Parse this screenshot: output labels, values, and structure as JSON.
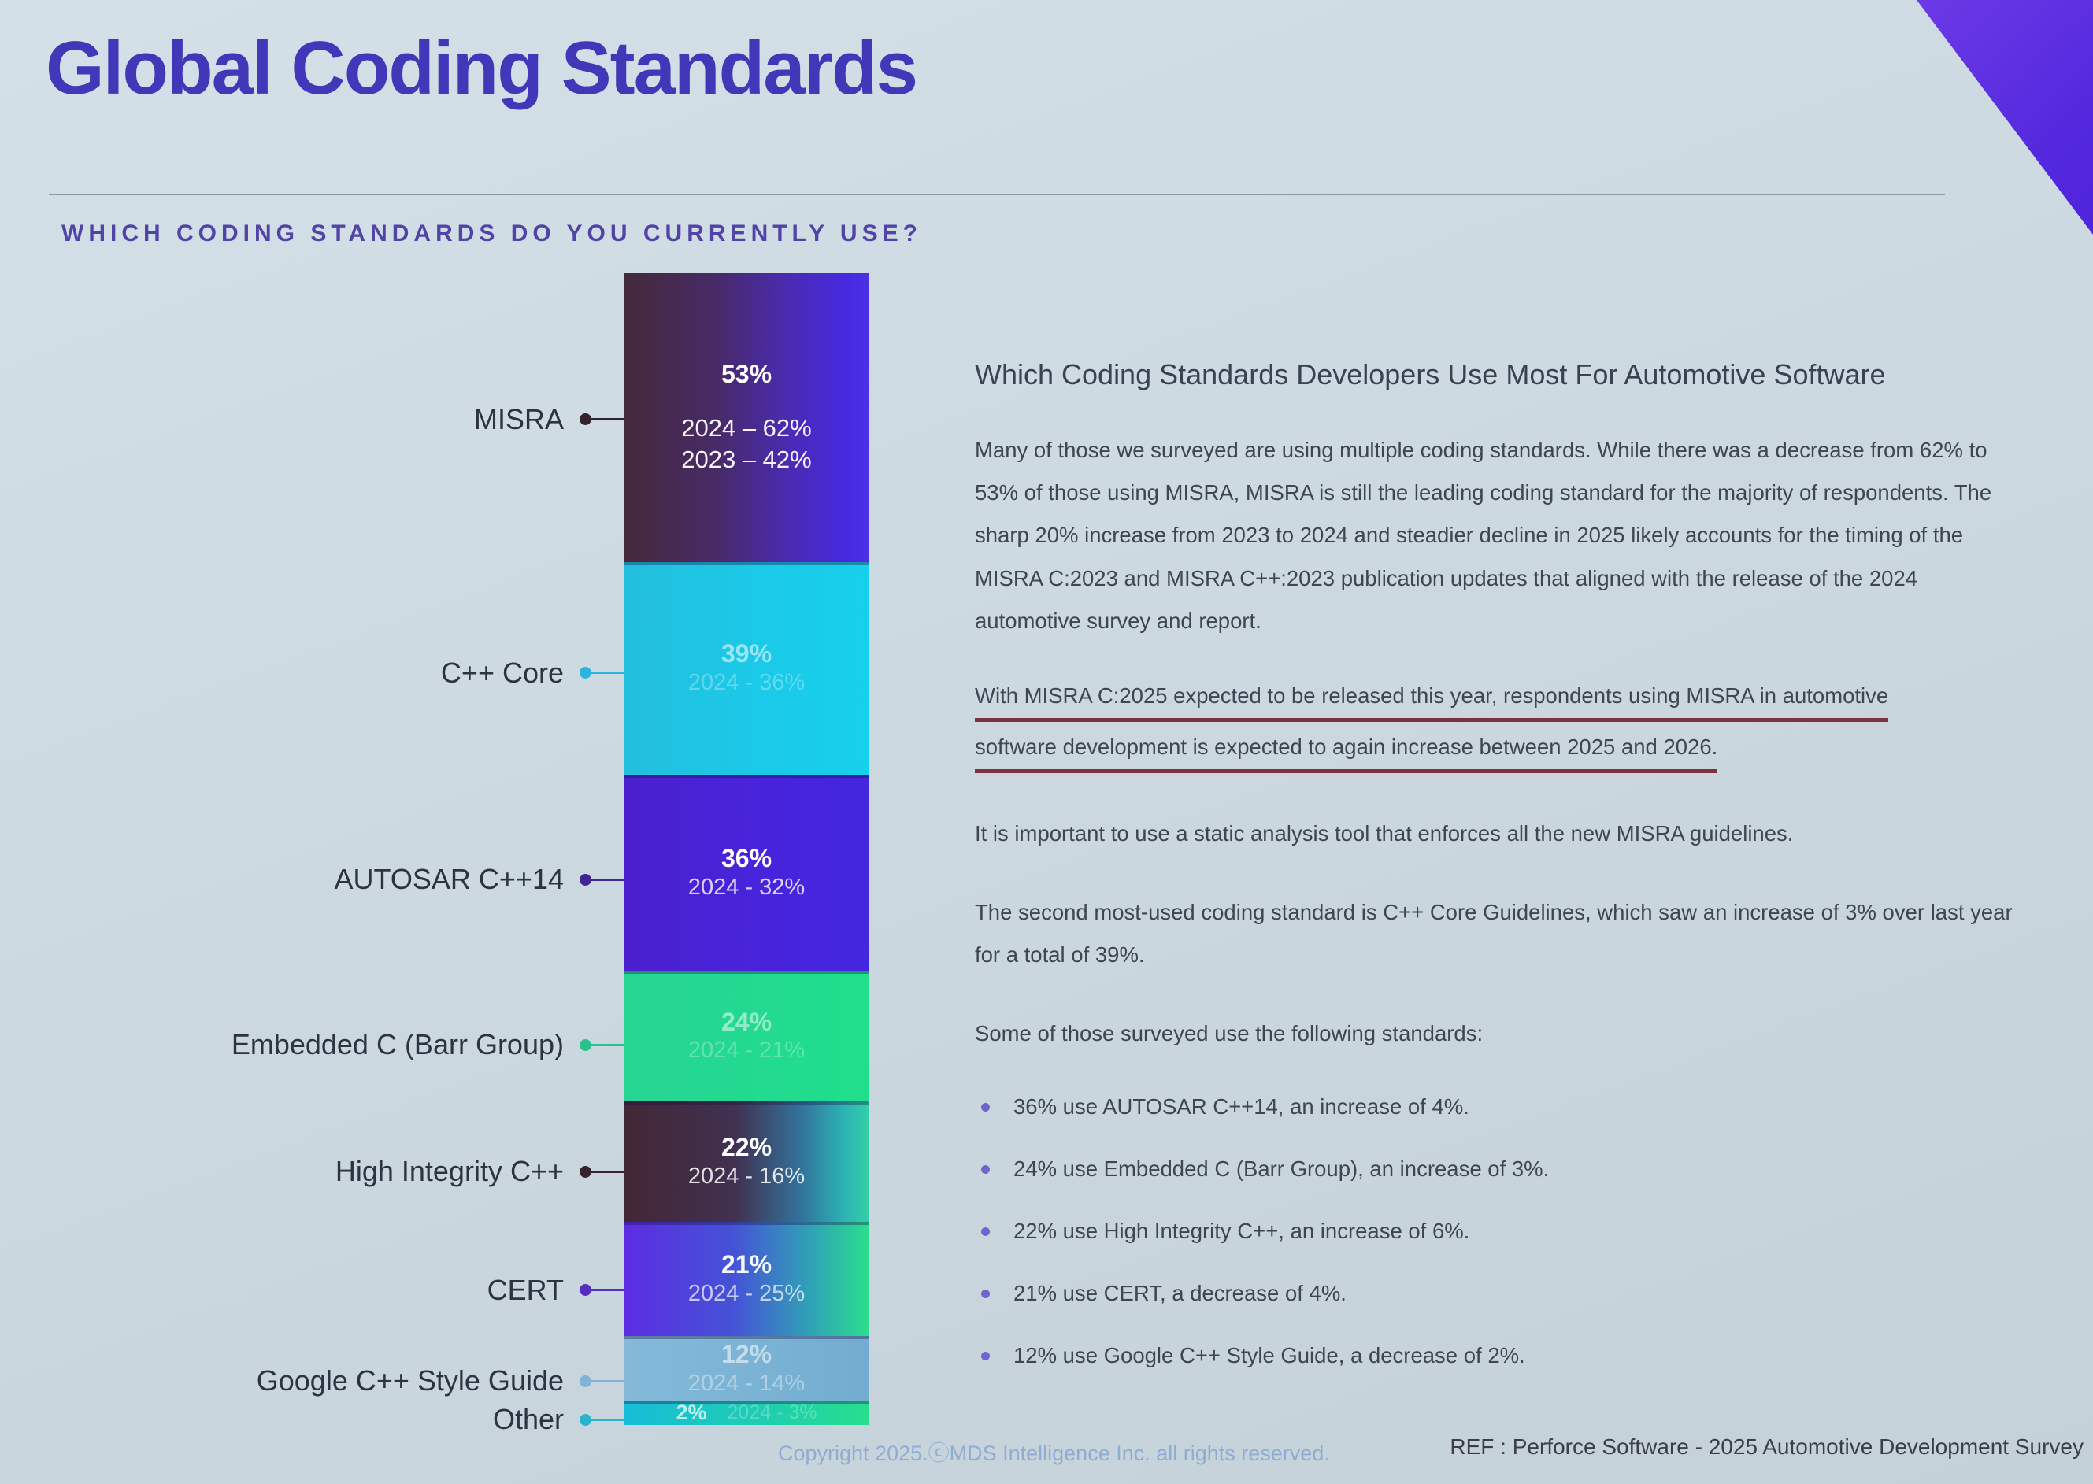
{
  "slide": {
    "title": "Global Coding Standards",
    "subtitle": "WHICH CODING STANDARDS DO YOU CURRENTLY USE?",
    "background_color": "#cdd9e1",
    "title_color": "#4137b8",
    "subtitle_color": "#5243a6",
    "corner_triangle_color": "#5a2ee0"
  },
  "chart_data": {
    "type": "bar",
    "stacked": true,
    "orientation": "vertical-single-stack",
    "title": "Which coding standards do you currently use?",
    "unit": "%",
    "legend_position": "left-labels-with-connectors",
    "segments": [
      {
        "label": "MISRA",
        "value": 53,
        "value_label": "53%",
        "sub_lines": [
          "2024 – 62%",
          "2023 – 42%"
        ],
        "pct_opacity": 1,
        "sub_opacity": 0.95,
        "dot_color": "#35222f",
        "gradient": [
          "#44293a 0%",
          "#482a68 38%",
          "#4a2bb4 68%",
          "#4629e2 92%",
          "#4c31e6 100%"
        ]
      },
      {
        "label": "C++ Core",
        "value": 39,
        "value_label": "39%",
        "sub_lines": [
          "2024 - 36%"
        ],
        "pct_opacity": 0.55,
        "sub_opacity": 0.3,
        "dot_color": "#2ab6dc",
        "gradient": [
          "#23bfdd 0%",
          "#1bc9e8 55%",
          "#17d0ec 100%"
        ]
      },
      {
        "label": "AUTOSAR C++14",
        "value": 36,
        "value_label": "36%",
        "sub_lines": [
          "2024 - 32%"
        ],
        "pct_opacity": 1,
        "sub_opacity": 0.8,
        "dot_color": "#3f2694",
        "gradient": [
          "#4a20cd 0%",
          "#4724dc 60%",
          "#4326e0 100%"
        ]
      },
      {
        "label": "Embedded C (Barr Group)",
        "value": 24,
        "value_label": "24%",
        "sub_lines": [
          "2024 - 21%"
        ],
        "pct_opacity": 0.5,
        "sub_opacity": 0.28,
        "dot_color": "#2cc08d",
        "gradient": [
          "#27d593 0%",
          "#22da90 60%",
          "#1fdf8b 100%"
        ]
      },
      {
        "label": "High Integrity C++",
        "value": 22,
        "value_label": "22%",
        "sub_lines": [
          "2024 - 16%"
        ],
        "pct_opacity": 1,
        "sub_opacity": 0.85,
        "dot_color": "#38222f",
        "gradient": [
          "#422735 0%",
          "#413050 45%",
          "#33719b 72%",
          "#2cb3b6 90%",
          "#33cfa6 100%"
        ]
      },
      {
        "label": "CERT",
        "value": 21,
        "value_label": "21%",
        "sub_lines": [
          "2024 - 25%"
        ],
        "pct_opacity": 0.95,
        "sub_opacity": 0.7,
        "dot_color": "#5530bf",
        "gradient": [
          "#5c2ce2 0%",
          "#4553d6 45%",
          "#2fa7b4 78%",
          "#2bdd8d 100%"
        ]
      },
      {
        "label": "Google C++ Style Guide",
        "value": 12,
        "value_label": "12%",
        "sub_lines": [
          "2024 - 14%"
        ],
        "pct_opacity": 0.55,
        "sub_opacity": 0.4,
        "dot_color": "#82b2d4",
        "gradient": [
          "#84b9d8 0%",
          "#7ab2d4 60%",
          "#72acd0 100%"
        ]
      },
      {
        "label": "Other",
        "value": 2,
        "value_label": "2%",
        "sub_lines": [
          "2024 - 3%"
        ],
        "pct_opacity": 0.7,
        "sub_opacity": 0.25,
        "dot_color": "#27b4cf",
        "gradient": [
          "#17bcd9 0%",
          "#1fcdb2 55%",
          "#25df8d 100%"
        ]
      }
    ]
  },
  "panel": {
    "heading": "Which Coding Standards Developers Use Most For Automotive Software",
    "paragraph_intro": "Many of those we surveyed are using multiple coding standards. While there was a decrease from 62% to 53% of those using MISRA, MISRA is still the leading coding standard for the majority of respondents. The sharp 20% increase from 2023 to 2024 and steadier decline in 2025 likely accounts for the timing of the MISRA C:2023 and MISRA C++:2023 publication updates that aligned with the release of the 2024 automotive survey and report.",
    "underlined": [
      "With MISRA C:2025 expected to be released this year, respondents using MISRA in automotive",
      "software development is expected to again increase between 2025 and 2026."
    ],
    "underline_color": "#7d3244",
    "paragraph_static_analysis": "It is important to use a static analysis tool that enforces all the new MISRA guidelines.",
    "paragraph_second": "The second most-used coding standard is C++ Core Guidelines, which saw an increase of 3% over last year for a total of 39%.",
    "paragraph_bullets_intro": "Some of those surveyed use the following standards:",
    "bullets": [
      "36% use AUTOSAR C++14, an increase of 4%.",
      "24% use Embedded C (Barr Group), an increase of 3%.",
      "22% use High Integrity C++, an increase of 6%.",
      "21% use CERT, a decrease of 4%.",
      "12% use Google C++ Style Guide, a decrease of 2%."
    ]
  },
  "footer": {
    "copyright": "Copyright 2025.ⓒMDS Intelligence Inc. all rights reserved.",
    "reference": "REF : Perforce Software - 2025 Automotive Development Survey"
  }
}
